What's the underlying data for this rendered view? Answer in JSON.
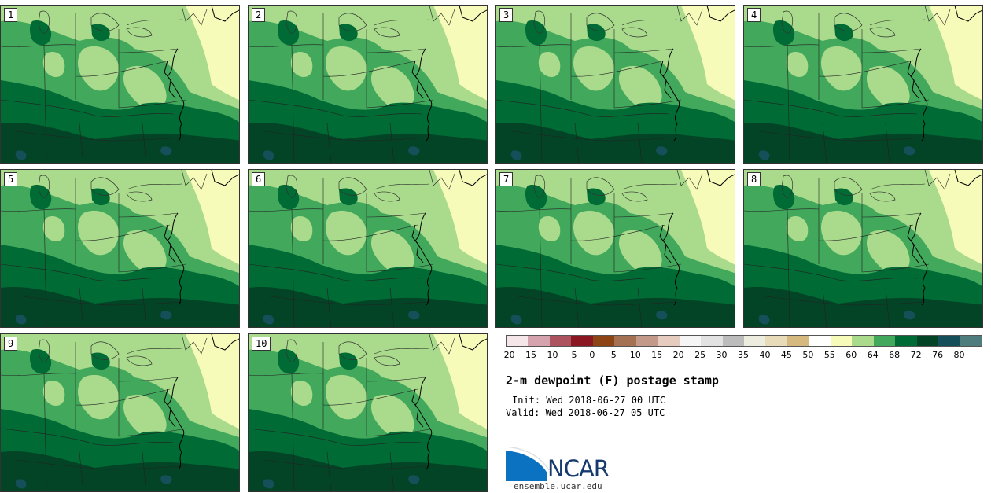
{
  "panels": [
    {
      "label": "1"
    },
    {
      "label": "2"
    },
    {
      "label": "3"
    },
    {
      "label": "4"
    },
    {
      "label": "5"
    },
    {
      "label": "6"
    },
    {
      "label": "7"
    },
    {
      "label": "8"
    },
    {
      "label": "9"
    },
    {
      "label": "10"
    }
  ],
  "colorbar": {
    "colors": [
      "#f5e6ea",
      "#d5a3ae",
      "#ad5360",
      "#8a1722",
      "#8d4516",
      "#a47155",
      "#c39a89",
      "#e6ccbf",
      "#f5f5f5",
      "#e2e2e2",
      "#bcbcbc",
      "#ececdf",
      "#e7dbb9",
      "#d5b97f",
      "#ffffff",
      "#f6fbb9",
      "#aadb8c",
      "#41a85c",
      "#006b34",
      "#034426",
      "#15505a",
      "#4f7c7c"
    ],
    "ticks": [
      "−20",
      "−15",
      "−10",
      "−5",
      "0",
      "5",
      "10",
      "15",
      "20",
      "25",
      "30",
      "35",
      "40",
      "45",
      "50",
      "55",
      "60",
      "64",
      "68",
      "72",
      "76",
      "80"
    ]
  },
  "title": "2-m dewpoint (F) postage stamp",
  "init": "Init: Wed 2018-06-27 00 UTC",
  "valid": "Valid: Wed 2018-06-27 05 UTC",
  "logo": {
    "text": "NCAR",
    "url": "ensemble.ucar.edu"
  }
}
